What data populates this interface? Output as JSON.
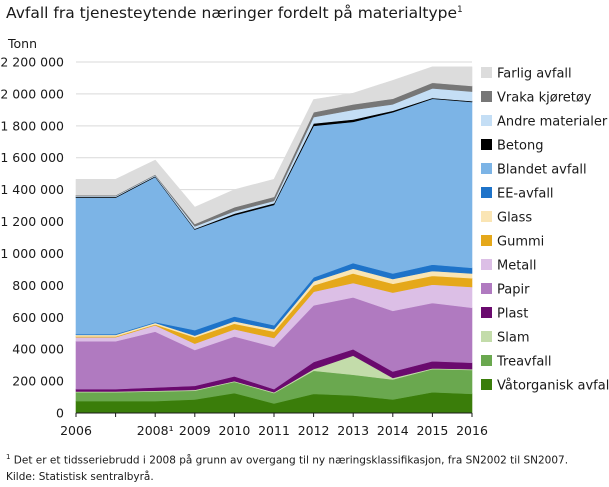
{
  "chart_data": {
    "type": "area",
    "stacked": true,
    "title": "Avfall fra tjenesteytende næringer fordelt på materialtype",
    "title_note_marker": "1",
    "ylabel": "Tonn",
    "xlabel": "",
    "ylim": [
      0,
      2200000
    ],
    "yticks": [
      0,
      200000,
      400000,
      600000,
      800000,
      1000000,
      1200000,
      1400000,
      1600000,
      1800000,
      2000000,
      2200000
    ],
    "ytick_labels": [
      "0",
      "200 000",
      "400 000",
      "600 000",
      "800 000",
      "1 000 000",
      "1 200 000",
      "1 400 000",
      "1 600 000",
      "1 800 000",
      "2 000 000",
      "2 200 000"
    ],
    "x": [
      "2006",
      "2007",
      "2008",
      "2009",
      "2010",
      "2011",
      "2012",
      "2013",
      "2014",
      "2015",
      "2016"
    ],
    "x_labels": [
      "2006",
      "",
      "2008¹",
      "2009",
      "2010",
      "2011",
      "2012",
      "2013",
      "2014",
      "2015",
      "2016"
    ],
    "grid": "horizontal",
    "legend_position": "right",
    "series": [
      {
        "name": "Våtorganisk avfall",
        "color": "#3a7d0a",
        "values": [
          75000,
          75000,
          75000,
          85000,
          125000,
          60000,
          120000,
          110000,
          85000,
          130000,
          120000
        ]
      },
      {
        "name": "Treavfall",
        "color": "#6aa84f",
        "values": [
          55000,
          55000,
          60000,
          55000,
          70000,
          65000,
          145000,
          130000,
          125000,
          145000,
          150000
        ]
      },
      {
        "name": "Slam",
        "color": "#c3dcaa",
        "values": [
          5000,
          5000,
          5000,
          5000,
          5000,
          5000,
          10000,
          120000,
          10000,
          5000,
          5000
        ]
      },
      {
        "name": "Plast",
        "color": "#6a0a6e",
        "values": [
          15000,
          15000,
          20000,
          25000,
          30000,
          20000,
          45000,
          40000,
          40000,
          45000,
          40000
        ]
      },
      {
        "name": "Papir",
        "color": "#b07ac0",
        "values": [
          300000,
          300000,
          350000,
          225000,
          250000,
          265000,
          355000,
          325000,
          380000,
          365000,
          345000
        ]
      },
      {
        "name": "Metall",
        "color": "#dcbfe6",
        "values": [
          25000,
          25000,
          40000,
          40000,
          45000,
          55000,
          85000,
          90000,
          115000,
          115000,
          130000
        ]
      },
      {
        "name": "Gummi",
        "color": "#e5a81a",
        "values": [
          5000,
          5000,
          5000,
          40000,
          35000,
          40000,
          40000,
          60000,
          55000,
          55000,
          55000
        ]
      },
      {
        "name": "Glass",
        "color": "#fae5b4",
        "values": [
          10000,
          10000,
          10000,
          10000,
          15000,
          15000,
          25000,
          30000,
          30000,
          30000,
          30000
        ]
      },
      {
        "name": "EE-avfall",
        "color": "#1e73c9",
        "values": [
          5000,
          5000,
          5000,
          35000,
          30000,
          25000,
          25000,
          35000,
          35000,
          40000,
          35000
        ]
      },
      {
        "name": "Blandet avfall",
        "color": "#7cb4e6",
        "values": [
          855000,
          855000,
          910000,
          630000,
          635000,
          755000,
          950000,
          885000,
          1010000,
          1040000,
          1040000
        ]
      },
      {
        "name": "Betong",
        "color": "#000000",
        "values": [
          5000,
          5000,
          5000,
          5000,
          10000,
          10000,
          15000,
          15000,
          10000,
          5000,
          5000
        ]
      },
      {
        "name": "Andre materialer",
        "color": "#c4def5",
        "values": [
          5000,
          5000,
          5000,
          15000,
          15000,
          15000,
          40000,
          60000,
          40000,
          60000,
          60000
        ]
      },
      {
        "name": "Vraka kjøretøy",
        "color": "#777777",
        "values": [
          5000,
          5000,
          5000,
          15000,
          25000,
          25000,
          30000,
          35000,
          35000,
          35000,
          35000
        ]
      },
      {
        "name": "Farlig avfall",
        "color": "#dcdcdc",
        "values": [
          100000,
          100000,
          90000,
          105000,
          110000,
          110000,
          80000,
          70000,
          115000,
          100000,
          120000
        ]
      }
    ]
  },
  "footnote": {
    "line1_marker": "1",
    "line1": " Det er et tidsseriebrudd i 2008 på grunn av overgang til ny næringsklassifikasjon, fra SN2002 til SN2007.",
    "line2": "Kilde: Statistisk sentralbyrå."
  }
}
